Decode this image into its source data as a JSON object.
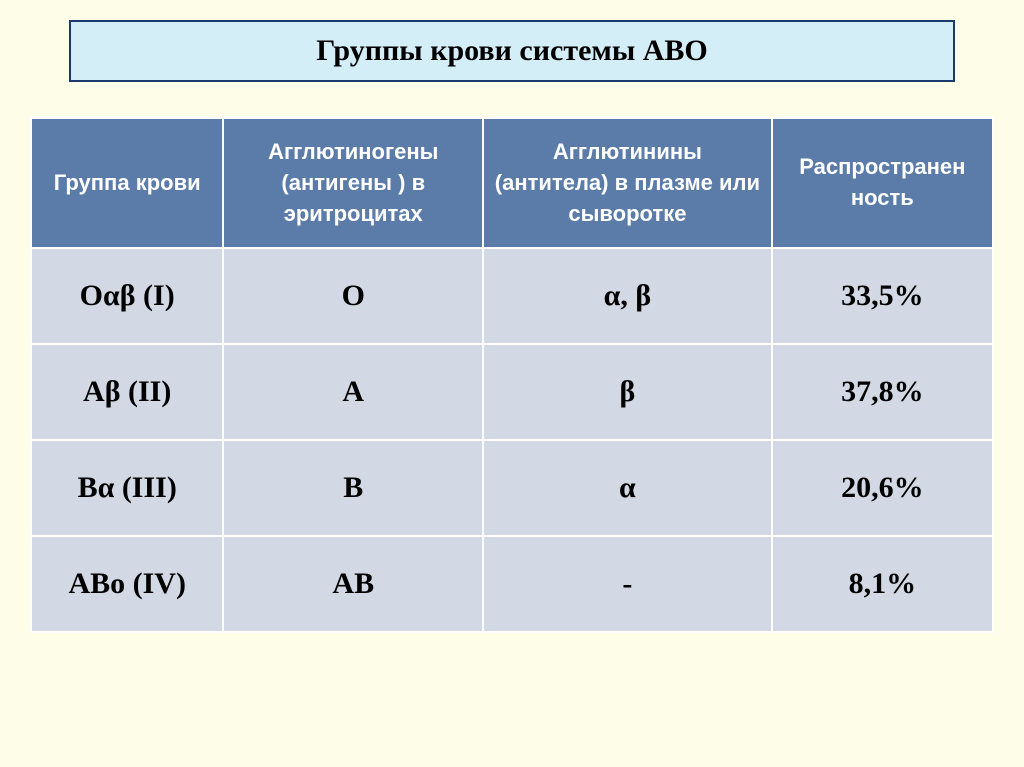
{
  "title": "Группы крови системы АВО",
  "table": {
    "columns": [
      "Группа крови",
      "Агглютиногены (антигены ) в эритроцитах",
      "Агглютинины (антитела) в плазме или сыворотке",
      "Распространен ность"
    ],
    "column_widths": [
      "20%",
      "27%",
      "30%",
      "23%"
    ],
    "header_bg_color": "#5b7ca8",
    "header_text_color": "#ffffff",
    "header_font_size": 22,
    "cell_bg_color": "#d3d9e4",
    "cell_text_color": "#000000",
    "cell_font_size": 30,
    "border_color": "#ffffff",
    "rows": [
      [
        "Оαβ (I)",
        "О",
        "α, β",
        "33,5%"
      ],
      [
        "Аβ (II)",
        "А",
        "β",
        "37,8%"
      ],
      [
        "Вα (III)",
        "В",
        "α",
        "20,6%"
      ],
      [
        "АВо (IV)",
        "АВ",
        "-",
        "8,1%"
      ]
    ]
  },
  "page": {
    "background_color": "#fdfde8",
    "title_bg_color": "#d4eef7",
    "title_border_color": "#1a3a6e",
    "title_font_size": 30
  }
}
